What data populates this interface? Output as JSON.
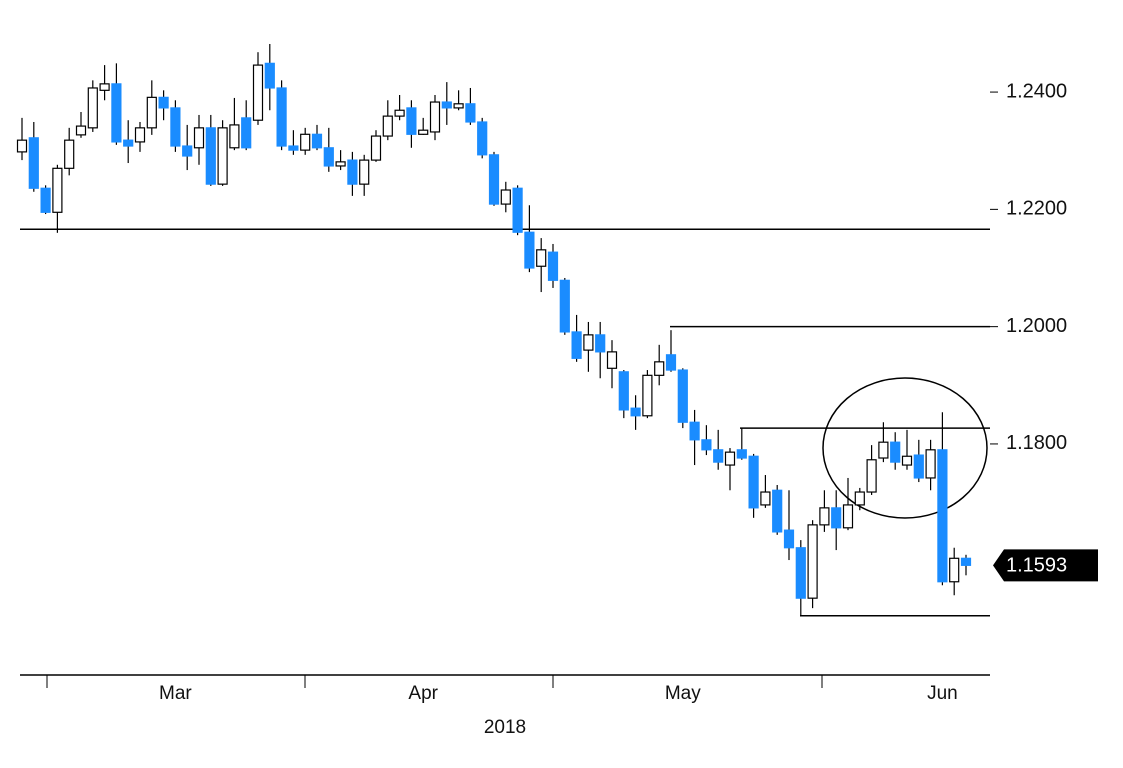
{
  "chart_data": {
    "type": "candlestick",
    "categories": [
      null,
      null,
      null,
      null,
      null,
      null,
      null,
      null,
      null,
      null,
      null,
      null,
      null,
      "Mar",
      null,
      null,
      null,
      null,
      null,
      null,
      null,
      null,
      null,
      null,
      null,
      null,
      null,
      null,
      null,
      null,
      null,
      null,
      null,
      null,
      "Apr",
      null,
      null,
      null,
      null,
      null,
      null,
      null,
      null,
      null,
      null,
      null,
      null,
      null,
      null,
      null,
      null,
      null,
      null,
      null,
      null,
      null,
      "May",
      null,
      null,
      null,
      null,
      null,
      null,
      null,
      null,
      null,
      null,
      null,
      null,
      null,
      null,
      null,
      null,
      null,
      null,
      null,
      null,
      null,
      "Jun",
      null,
      null
    ],
    "year_label": "2018",
    "open": [
      1.2298,
      1.2322,
      1.2236,
      1.2195,
      1.227,
      1.2327,
      1.2339,
      1.2403,
      1.2414,
      1.2318,
      1.2315,
      1.2339,
      1.2391,
      1.2373,
      1.2308,
      1.2305,
      1.2339,
      1.2243,
      1.2305,
      1.2356,
      1.2352,
      1.2449,
      1.2407,
      1.2308,
      1.2301,
      1.2328,
      1.2305,
      1.2274,
      1.2284,
      1.2243,
      1.2284,
      1.2325,
      1.2359,
      1.2373,
      1.2328,
      1.2332,
      1.2383,
      1.2373,
      1.238,
      1.2349,
      1.2293,
      1.2209,
      1.2236,
      1.2161,
      1.2103,
      1.2127,
      1.2079,
      1.1991,
      1.196,
      1.1986,
      1.1929,
      1.1923,
      1.1861,
      1.1848,
      1.1917,
      1.1952,
      1.1926,
      1.1837,
      1.1807,
      1.179,
      1.1764,
      1.179,
      1.1779,
      1.1696,
      1.1721,
      1.1653,
      1.1623,
      1.1537,
      1.1662,
      1.1691,
      1.1657,
      1.1696,
      1.1718,
      1.1776,
      1.1803,
      1.1764,
      1.1781,
      1.1742,
      1.179,
      1.1565,
      1.1605
    ],
    "high": [
      1.2356,
      1.2349,
      1.2241,
      1.2276,
      1.2339,
      1.2366,
      1.242,
      1.2446,
      1.2449,
      1.2352,
      1.2349,
      1.242,
      1.2403,
      1.2386,
      1.2344,
      1.2361,
      1.2361,
      1.2352,
      1.239,
      1.2386,
      1.2468,
      1.2482,
      1.242,
      1.2335,
      1.2339,
      1.2344,
      1.2339,
      1.2301,
      1.2298,
      1.2293,
      1.2335,
      1.2386,
      1.2395,
      1.2386,
      1.2356,
      1.2395,
      1.2417,
      1.2403,
      1.2407,
      1.2356,
      1.2298,
      1.2247,
      1.2241,
      1.2207,
      1.2151,
      1.2141,
      1.2083,
      1.202,
      1.2008,
      1.2008,
      1.1977,
      1.1926,
      1.1883,
      1.1926,
      1.1969,
      1.1994,
      1.1929,
      1.1858,
      1.1832,
      1.1824,
      1.1793,
      1.1827,
      1.1783,
      1.1747,
      1.173,
      1.1721,
      1.1636,
      1.167,
      1.1721,
      1.1721,
      1.1742,
      1.1725,
      1.1798,
      1.1837,
      1.182,
      1.1824,
      1.1807,
      1.1807,
      1.1854,
      1.1623,
      1.1611
    ],
    "low": [
      1.2284,
      1.223,
      1.2192,
      1.216,
      1.2258,
      1.2322,
      1.2332,
      1.2386,
      1.231,
      1.2279,
      1.2298,
      1.2327,
      1.2352,
      1.2298,
      1.2267,
      1.2276,
      1.224,
      1.224,
      1.2301,
      1.2301,
      1.2344,
      1.2369,
      1.2301,
      1.2293,
      1.2293,
      1.2301,
      1.2264,
      1.2267,
      1.2223,
      1.2223,
      1.2281,
      1.2318,
      1.2352,
      1.2305,
      1.2327,
      1.2318,
      1.2344,
      1.2369,
      1.2344,
      1.2287,
      1.2206,
      1.2195,
      1.2156,
      1.2093,
      1.2059,
      1.2066,
      1.1986,
      1.194,
      1.1923,
      1.1912,
      1.1895,
      1.1844,
      1.1824,
      1.1844,
      1.19,
      1.1923,
      1.1827,
      1.1764,
      1.1781,
      1.1756,
      1.1721,
      1.1773,
      1.1674,
      1.1691,
      1.1645,
      1.1602,
      1.1508,
      1.152,
      1.165,
      1.1619,
      1.1653,
      1.1687,
      1.1713,
      1.1769,
      1.1756,
      1.1756,
      1.1735,
      1.1721,
      1.1559,
      1.1542,
      1.1576
    ],
    "close": [
      1.2318,
      1.2236,
      1.2195,
      1.227,
      1.2318,
      1.2342,
      1.2407,
      1.2414,
      1.2315,
      1.2308,
      1.2339,
      1.2391,
      1.2373,
      1.2308,
      1.2291,
      1.2339,
      1.2243,
      1.2339,
      1.2344,
      1.2305,
      1.2446,
      1.2407,
      1.2308,
      1.2301,
      1.2328,
      1.2305,
      1.2274,
      1.2281,
      1.2243,
      1.2284,
      1.2325,
      1.2359,
      1.2369,
      1.2328,
      1.2335,
      1.2383,
      1.2373,
      1.238,
      1.2349,
      1.2293,
      1.2209,
      1.2233,
      1.2161,
      1.21,
      1.2131,
      1.2079,
      1.1991,
      1.1946,
      1.1986,
      1.1957,
      1.1957,
      1.1858,
      1.1848,
      1.1917,
      1.194,
      1.1926,
      1.1837,
      1.1807,
      1.179,
      1.1769,
      1.1786,
      1.1776,
      1.1691,
      1.1718,
      1.165,
      1.1623,
      1.1537,
      1.1662,
      1.1691,
      1.1657,
      1.1696,
      1.1718,
      1.1773,
      1.1803,
      1.1769,
      1.1779,
      1.1742,
      1.179,
      1.1565,
      1.1605,
      1.1593
    ],
    "up_color": "#ffffff",
    "down_color": "#1a8cff",
    "last_price_label": "1.1593",
    "levels": [
      1.2166,
      1.2,
      1.1827,
      1.1507
    ],
    "ylim": [
      1.1406,
      1.2557
    ],
    "yticks": [
      {
        "value": 1.18,
        "label": "1.1800"
      },
      {
        "value": 1.2,
        "label": "1.2000"
      },
      {
        "value": 1.22,
        "label": "1.2200"
      },
      {
        "value": 1.24,
        "label": "1.2400"
      }
    ]
  }
}
